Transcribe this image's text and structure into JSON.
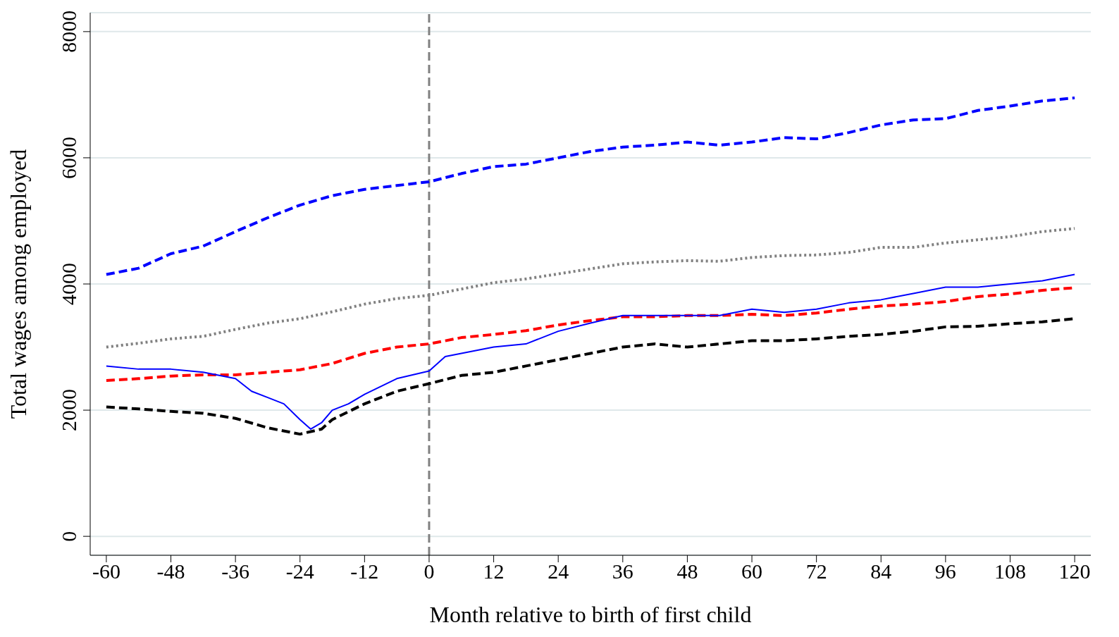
{
  "chart_data": {
    "type": "line",
    "xlabel": "Month relative to birth of first child",
    "ylabel": "Total wages among employed",
    "xlim": [
      -63,
      123
    ],
    "xticks": [
      -60,
      -48,
      -36,
      -24,
      -12,
      0,
      12,
      24,
      36,
      48,
      60,
      72,
      84,
      96,
      108,
      120
    ],
    "ylim": [
      -300,
      8300
    ],
    "yticks": [
      0,
      2000,
      4000,
      6000,
      8000
    ],
    "grid": "y",
    "legend": false,
    "marker": "none",
    "ref_lines": [
      {
        "axis": "x",
        "value": 0,
        "color": "#808080",
        "line_style": "dashed"
      }
    ],
    "series": [
      {
        "color": "#0000ff",
        "line_style": "dashed",
        "x": [
          -60,
          -54,
          -48,
          -42,
          -36,
          -30,
          -24,
          -18,
          -12,
          -6,
          0,
          6,
          12,
          18,
          24,
          30,
          36,
          42,
          48,
          54,
          60,
          66,
          72,
          78,
          84,
          90,
          96,
          102,
          108,
          114,
          120
        ],
        "values": [
          4150,
          4250,
          4480,
          4600,
          4830,
          5050,
          5250,
          5400,
          5500,
          5560,
          5620,
          5750,
          5860,
          5900,
          6000,
          6100,
          6170,
          6200,
          6250,
          6200,
          6250,
          6320,
          6300,
          6400,
          6520,
          6600,
          6620,
          6750,
          6820,
          6900,
          6950
        ]
      },
      {
        "color": "#808080",
        "line_style": "dotted",
        "x": [
          -60,
          -54,
          -48,
          -42,
          -36,
          -30,
          -24,
          -18,
          -12,
          -6,
          0,
          6,
          12,
          18,
          24,
          30,
          36,
          42,
          48,
          54,
          60,
          66,
          72,
          78,
          84,
          90,
          96,
          102,
          108,
          114,
          120
        ],
        "values": [
          3000,
          3060,
          3130,
          3170,
          3280,
          3380,
          3450,
          3560,
          3680,
          3770,
          3820,
          3920,
          4020,
          4080,
          4160,
          4240,
          4320,
          4350,
          4370,
          4360,
          4420,
          4450,
          4460,
          4500,
          4580,
          4580,
          4650,
          4700,
          4750,
          4830,
          4880
        ]
      },
      {
        "color": "#ff0000",
        "line_style": "dashed",
        "x": [
          -60,
          -54,
          -48,
          -42,
          -36,
          -30,
          -24,
          -18,
          -12,
          -6,
          0,
          6,
          12,
          18,
          24,
          30,
          36,
          42,
          48,
          54,
          60,
          66,
          72,
          78,
          84,
          90,
          96,
          102,
          108,
          114,
          120
        ],
        "values": [
          2470,
          2500,
          2540,
          2560,
          2560,
          2600,
          2640,
          2740,
          2900,
          3000,
          3050,
          3150,
          3200,
          3260,
          3350,
          3420,
          3480,
          3480,
          3500,
          3500,
          3520,
          3500,
          3540,
          3600,
          3650,
          3680,
          3720,
          3800,
          3840,
          3900,
          3940
        ]
      },
      {
        "color": "#0000ff",
        "line_style": "solid",
        "x": [
          -60,
          -54,
          -48,
          -42,
          -36,
          -33,
          -30,
          -27,
          -24,
          -22,
          -20,
          -18,
          -15,
          -12,
          -6,
          0,
          3,
          6,
          12,
          18,
          24,
          30,
          36,
          42,
          48,
          54,
          60,
          66,
          72,
          78,
          84,
          90,
          96,
          102,
          108,
          114,
          120
        ],
        "values": [
          2700,
          2650,
          2650,
          2600,
          2500,
          2300,
          2200,
          2100,
          1850,
          1700,
          1800,
          2000,
          2100,
          2250,
          2500,
          2620,
          2850,
          2900,
          3000,
          3050,
          3250,
          3380,
          3500,
          3500,
          3500,
          3500,
          3600,
          3550,
          3600,
          3700,
          3750,
          3850,
          3950,
          3950,
          4000,
          4050,
          4150
        ]
      },
      {
        "color": "#000000",
        "line_style": "dashed",
        "x": [
          -60,
          -54,
          -48,
          -42,
          -36,
          -30,
          -24,
          -20,
          -18,
          -12,
          -6,
          0,
          6,
          12,
          18,
          24,
          30,
          36,
          42,
          48,
          54,
          60,
          66,
          72,
          78,
          84,
          90,
          96,
          102,
          108,
          114,
          120
        ],
        "values": [
          2050,
          2020,
          1980,
          1950,
          1870,
          1720,
          1620,
          1700,
          1850,
          2100,
          2300,
          2420,
          2550,
          2600,
          2700,
          2800,
          2900,
          3000,
          3050,
          3000,
          3050,
          3100,
          3100,
          3130,
          3170,
          3200,
          3250,
          3320,
          3330,
          3370,
          3400,
          3450
        ]
      }
    ]
  }
}
